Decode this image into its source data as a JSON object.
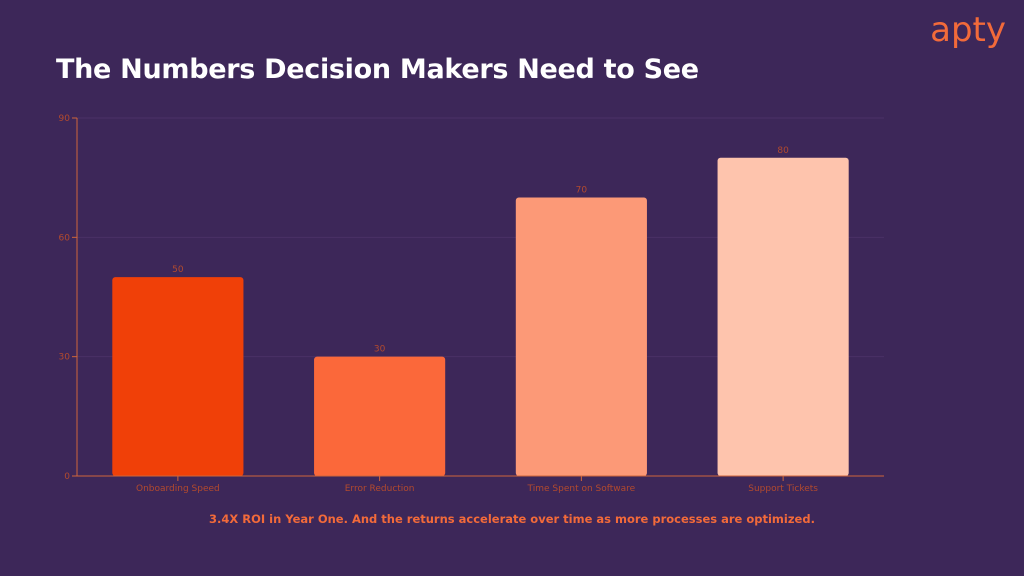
{
  "header": {
    "logo": "apty",
    "title": "The Numbers Decision Makers Need to See"
  },
  "footer": {
    "caption": "3.4X ROI in Year One. And the returns accelerate over time as more processes are optimized."
  },
  "colors": {
    "background": "#3d2759",
    "accent": "#f26a3a",
    "axis": "#d0663a",
    "grid": "#4a3166",
    "tick_text": "#b34a2e"
  },
  "chart_data": {
    "type": "bar",
    "categories": [
      "Onboarding Speed",
      "Error Reduction",
      "Time Spent on Software",
      "Support Tickets"
    ],
    "values": [
      50,
      30,
      70,
      80
    ],
    "bar_colors": [
      "#f04008",
      "#fb683a",
      "#fc9977",
      "#fec4ad"
    ],
    "ylim": [
      0,
      90
    ],
    "yticks": [
      0,
      30,
      60,
      90
    ],
    "grid": true,
    "title": "",
    "xlabel": "",
    "ylabel": ""
  }
}
